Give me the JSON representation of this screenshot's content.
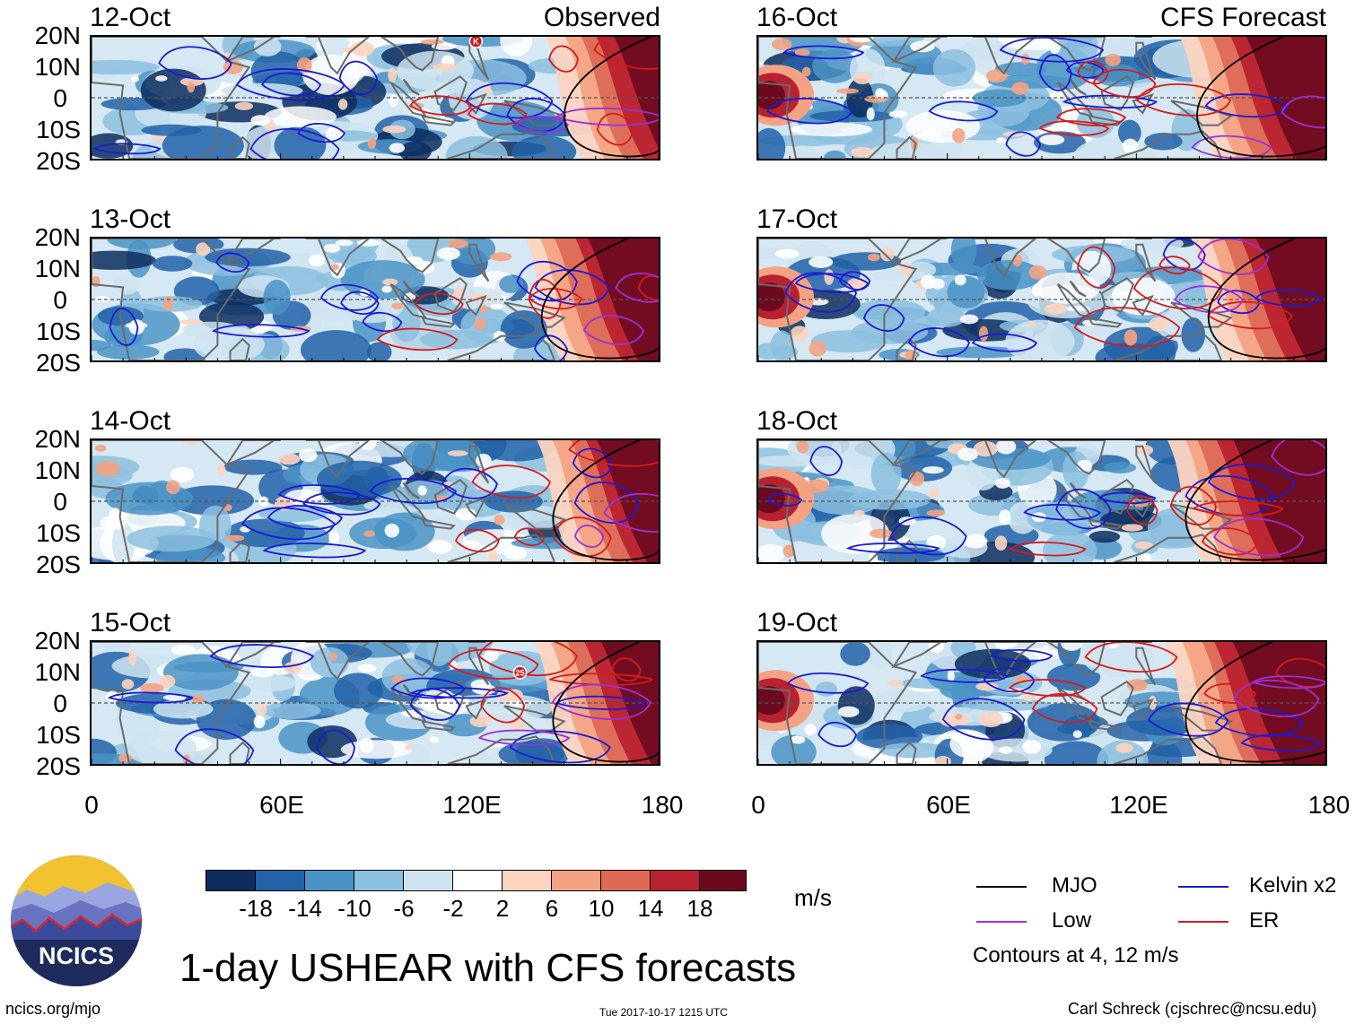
{
  "title": "1-day USHEAR with CFS forecasts",
  "source_url": "ncics.org/mjo",
  "timestamp": "Tue 2017-10-17 1215 UTC",
  "author": "Carl Schreck (cjschrec@ncsu.edu)",
  "logo_text": "NCICS",
  "observed_label": "Observed",
  "forecast_label": "CFS Forecast",
  "panels_left": [
    {
      "date": "12-Oct",
      "markers": [
        {
          "label": "K",
          "lon": 122,
          "lat": 18.5
        }
      ]
    },
    {
      "date": "13-Oct",
      "markers": []
    },
    {
      "date": "14-Oct",
      "markers": []
    },
    {
      "date": "15-Oct",
      "markers": [
        {
          "label": "25",
          "lon": 136,
          "lat": 10
        }
      ]
    }
  ],
  "panels_right": [
    {
      "date": "16-Oct"
    },
    {
      "date": "17-Oct"
    },
    {
      "date": "18-Oct"
    },
    {
      "date": "19-Oct"
    }
  ],
  "lat_labels": [
    "20N",
    "10N",
    "0",
    "10S",
    "20S"
  ],
  "lon_labels": [
    "0",
    "60E",
    "120E",
    "180"
  ],
  "colorbar": {
    "unit": "m/s",
    "labels": [
      "-18",
      "-14",
      "-10",
      "-6",
      "-2",
      "2",
      "6",
      "10",
      "14",
      "18"
    ],
    "colors": [
      "#0d2d5e",
      "#2262a8",
      "#4a93c6",
      "#8cc0df",
      "#cfe4f0",
      "#ffffff",
      "#fcd4c0",
      "#f3a383",
      "#dc6a56",
      "#b82230",
      "#6b0a1e"
    ]
  },
  "legend": {
    "items": [
      {
        "label": "MJO",
        "color": "#000000"
      },
      {
        "label": "Kelvin x2",
        "color": "#1a1ad6"
      },
      {
        "label": "Low",
        "color": "#9b30d8"
      },
      {
        "label": "ER",
        "color": "#d81a1a"
      }
    ],
    "note": "Contours at 4, 12 m/s"
  }
}
